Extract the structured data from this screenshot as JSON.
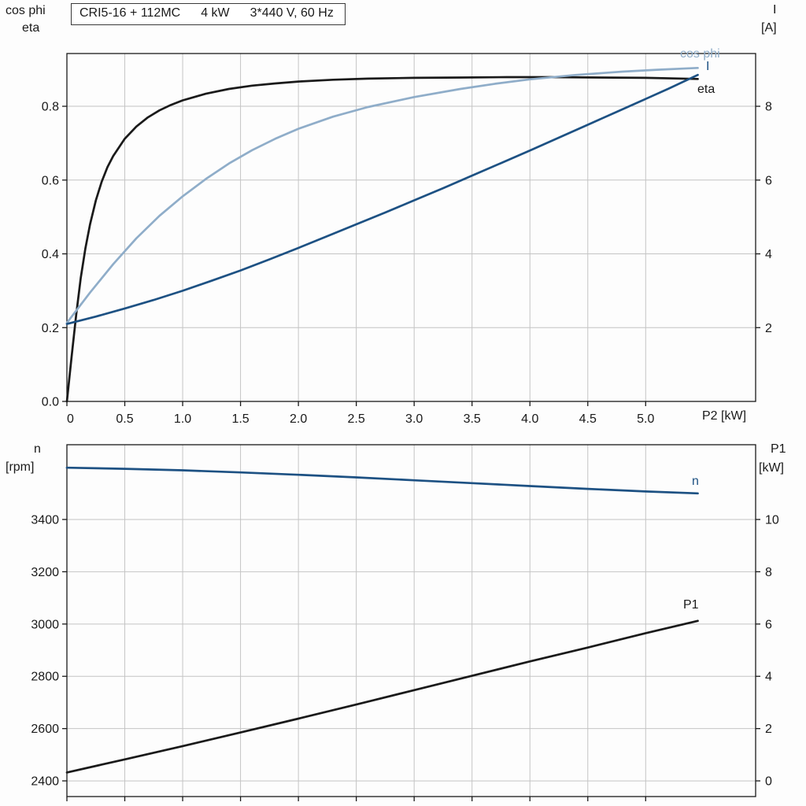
{
  "title": {
    "part1": "CRI5-16 + 112MC",
    "part2": "4 kW",
    "part3": "3*440 V, 60 Hz"
  },
  "axis_corner_labels": {
    "top_left_line1": "cos phi",
    "top_left_line2": "eta",
    "top_right_line1": "I",
    "top_right_line2": "[A]",
    "x_axis_label": "P2 [kW]",
    "bottom_left_line1": "n",
    "bottom_left_line2": "[rpm]",
    "bottom_right_line1": "P1",
    "bottom_right_line2": "[kW]"
  },
  "curve_labels": {
    "cos_phi": "cos phi",
    "current": "I",
    "eta": "eta",
    "speed": "n",
    "power": "P1"
  },
  "colors": {
    "black": "#1a1a1a",
    "dark_blue": "#1d5183",
    "light_blue": "#8fadc9",
    "grid": "#c4c4c4",
    "frame": "#1a1a1a"
  },
  "chart_data": [
    {
      "type": "line",
      "title": "CRI5-16 + 112MC  4 kW  3*440 V, 60 Hz",
      "xlabel": "P2 [kW]",
      "x_range": [
        0,
        5.95
      ],
      "x_ticks": [
        [
          0,
          "0"
        ],
        [
          0.5,
          "0.5"
        ],
        [
          1,
          "1.0"
        ],
        [
          1.5,
          "1.5"
        ],
        [
          2,
          "2.0"
        ],
        [
          2.5,
          "2.5"
        ],
        [
          3,
          "3.0"
        ],
        [
          3.5,
          "3.5"
        ],
        [
          4,
          "4.0"
        ],
        [
          4.5,
          "4.5"
        ],
        [
          5,
          "5.0"
        ]
      ],
      "show_x_tick_labels": true,
      "y_left": {
        "label": "cos phi / eta",
        "range": [
          0,
          0.943
        ],
        "ticks": [
          [
            0,
            "0.0"
          ],
          [
            0.2,
            "0.2"
          ],
          [
            0.4,
            "0.4"
          ],
          [
            0.6,
            "0.6"
          ],
          [
            0.8,
            "0.8"
          ]
        ]
      },
      "y_right": {
        "label": "I [A]",
        "range": [
          0,
          9.43
        ],
        "ticks": [
          [
            2,
            "2"
          ],
          [
            4,
            "4"
          ],
          [
            6,
            "6"
          ],
          [
            8,
            "8"
          ]
        ]
      },
      "series": [
        {
          "id": "eta",
          "name": "eta",
          "axis": "left",
          "color": "#1a1a1a",
          "points": [
            [
              0,
              0
            ],
            [
              0.04,
              0.12
            ],
            [
              0.08,
              0.235
            ],
            [
              0.12,
              0.335
            ],
            [
              0.16,
              0.415
            ],
            [
              0.2,
              0.48
            ],
            [
              0.25,
              0.545
            ],
            [
              0.3,
              0.595
            ],
            [
              0.35,
              0.635
            ],
            [
              0.4,
              0.665
            ],
            [
              0.5,
              0.712
            ],
            [
              0.6,
              0.745
            ],
            [
              0.7,
              0.77
            ],
            [
              0.8,
              0.789
            ],
            [
              0.9,
              0.804
            ],
            [
              1.0,
              0.816
            ],
            [
              1.2,
              0.834
            ],
            [
              1.4,
              0.847
            ],
            [
              1.6,
              0.856
            ],
            [
              1.8,
              0.862
            ],
            [
              2.0,
              0.867
            ],
            [
              2.3,
              0.872
            ],
            [
              2.6,
              0.875
            ],
            [
              3.0,
              0.877
            ],
            [
              3.4,
              0.878
            ],
            [
              3.8,
              0.879
            ],
            [
              4.2,
              0.879
            ],
            [
              4.6,
              0.878
            ],
            [
              5.0,
              0.877
            ],
            [
              5.45,
              0.874
            ]
          ]
        },
        {
          "id": "cos-phi",
          "name": "cos phi",
          "axis": "left",
          "color": "#8fadc9",
          "points": [
            [
              0,
              0.213
            ],
            [
              0.2,
              0.295
            ],
            [
              0.4,
              0.372
            ],
            [
              0.6,
              0.442
            ],
            [
              0.8,
              0.503
            ],
            [
              1.0,
              0.556
            ],
            [
              1.2,
              0.603
            ],
            [
              1.4,
              0.645
            ],
            [
              1.6,
              0.681
            ],
            [
              1.8,
              0.712
            ],
            [
              2.0,
              0.739
            ],
            [
              2.3,
              0.772
            ],
            [
              2.6,
              0.798
            ],
            [
              3.0,
              0.825
            ],
            [
              3.4,
              0.847
            ],
            [
              3.7,
              0.861
            ],
            [
              4.0,
              0.873
            ],
            [
              4.4,
              0.885
            ],
            [
              4.8,
              0.894
            ],
            [
              5.1,
              0.899
            ],
            [
              5.45,
              0.904
            ]
          ]
        },
        {
          "id": "current-i",
          "name": "I",
          "axis": "right",
          "color": "#1d5183",
          "points": [
            [
              0,
              2.1
            ],
            [
              0.25,
              2.3
            ],
            [
              0.5,
              2.52
            ],
            [
              0.75,
              2.75
            ],
            [
              1.0,
              3.0
            ],
            [
              1.25,
              3.27
            ],
            [
              1.5,
              3.55
            ],
            [
              1.75,
              3.85
            ],
            [
              2.0,
              4.16
            ],
            [
              2.25,
              4.48
            ],
            [
              2.5,
              4.8
            ],
            [
              2.75,
              5.12
            ],
            [
              3.0,
              5.45
            ],
            [
              3.25,
              5.78
            ],
            [
              3.5,
              6.12
            ],
            [
              3.75,
              6.46
            ],
            [
              4.0,
              6.8
            ],
            [
              4.25,
              7.15
            ],
            [
              4.5,
              7.5
            ],
            [
              4.75,
              7.85
            ],
            [
              5.0,
              8.2
            ],
            [
              5.2,
              8.48
            ],
            [
              5.45,
              8.85
            ]
          ]
        }
      ]
    },
    {
      "type": "line",
      "title": "",
      "xlabel": "",
      "x_range": [
        0,
        5.95
      ],
      "x_ticks": [
        [
          0,
          ""
        ],
        [
          0.5,
          ""
        ],
        [
          1,
          ""
        ],
        [
          1.5,
          ""
        ],
        [
          2,
          ""
        ],
        [
          2.5,
          ""
        ],
        [
          3,
          ""
        ],
        [
          3.5,
          ""
        ],
        [
          4,
          ""
        ],
        [
          4.5,
          ""
        ],
        [
          5,
          ""
        ]
      ],
      "show_x_tick_labels": false,
      "y_left": {
        "label": "n [rpm]",
        "range": [
          2340,
          3686
        ],
        "ticks": [
          [
            2400,
            "2400"
          ],
          [
            2600,
            "2600"
          ],
          [
            2800,
            "2800"
          ],
          [
            3000,
            "3000"
          ],
          [
            3200,
            "3200"
          ],
          [
            3400,
            "3400"
          ]
        ]
      },
      "y_right": {
        "label": "P1 [kW]",
        "range": [
          -0.6,
          12.86
        ],
        "ticks": [
          [
            0,
            "0"
          ],
          [
            2,
            "2"
          ],
          [
            4,
            "4"
          ],
          [
            6,
            "6"
          ],
          [
            8,
            "8"
          ],
          [
            10,
            "10"
          ]
        ]
      },
      "series": [
        {
          "id": "speed-n",
          "name": "n",
          "axis": "left",
          "color": "#1d5183",
          "points": [
            [
              0,
              3598
            ],
            [
              0.5,
              3594
            ],
            [
              1,
              3588
            ],
            [
              1.5,
              3580
            ],
            [
              2,
              3571
            ],
            [
              2.5,
              3561
            ],
            [
              3,
              3550
            ],
            [
              3.5,
              3539
            ],
            [
              4,
              3528
            ],
            [
              4.5,
              3517
            ],
            [
              5,
              3507
            ],
            [
              5.45,
              3500
            ]
          ]
        },
        {
          "id": "p1",
          "name": "P1",
          "axis": "right",
          "color": "#1a1a1a",
          "points": [
            [
              0,
              0.32
            ],
            [
              0.5,
              0.82
            ],
            [
              1,
              1.33
            ],
            [
              1.5,
              1.85
            ],
            [
              2,
              2.38
            ],
            [
              2.5,
              2.92
            ],
            [
              3,
              3.47
            ],
            [
              3.5,
              4.02
            ],
            [
              4,
              4.57
            ],
            [
              4.5,
              5.1
            ],
            [
              5,
              5.65
            ],
            [
              5.45,
              6.12
            ]
          ]
        }
      ]
    }
  ]
}
